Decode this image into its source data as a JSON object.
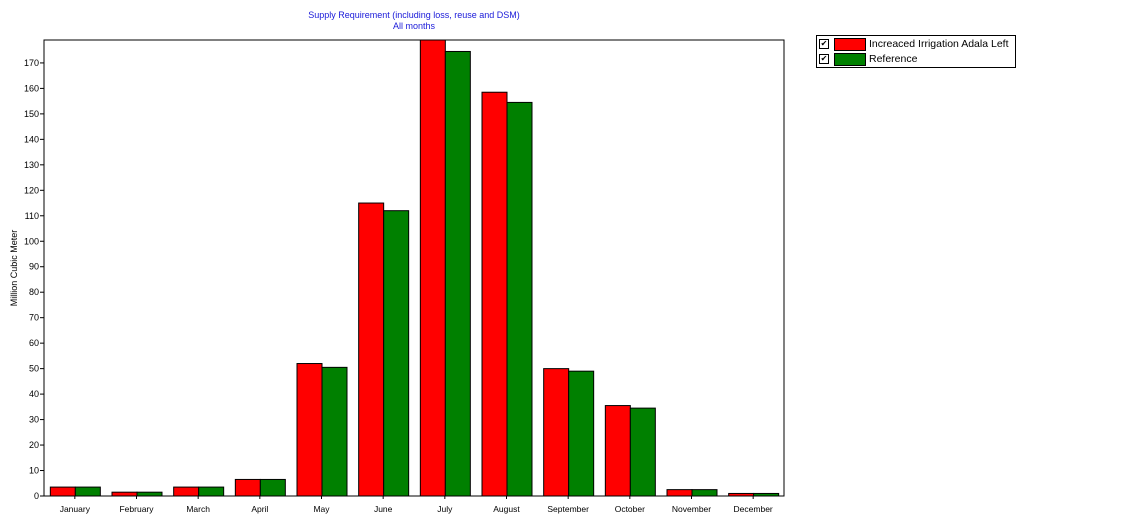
{
  "chart_data": {
    "type": "bar",
    "title": "Supply Requirement (including loss, reuse and DSM)",
    "subtitle": "All months",
    "xlabel": "",
    "ylabel": "Million Cubic Meter",
    "ylim": [
      0,
      179
    ],
    "yticks": [
      0,
      10,
      20,
      30,
      40,
      50,
      60,
      70,
      80,
      90,
      100,
      110,
      120,
      130,
      140,
      150,
      160,
      170
    ],
    "grid": false,
    "legend_position": "top-right, outside plot",
    "categories": [
      "January",
      "February",
      "March",
      "April",
      "May",
      "June",
      "July",
      "August",
      "September",
      "October",
      "November",
      "December"
    ],
    "series": [
      {
        "name": "Increaced Irrigation Adala Left",
        "color": "#ff0000",
        "values": [
          3.5,
          1.5,
          3.5,
          6.5,
          52,
          115,
          179,
          158.5,
          50,
          35.5,
          2.5,
          1
        ]
      },
      {
        "name": "Reference",
        "color": "#008000",
        "values": [
          3.5,
          1.5,
          3.5,
          6.5,
          50.5,
          112,
          174.5,
          154.5,
          49,
          34.5,
          2.5,
          1
        ]
      }
    ]
  },
  "legend": {
    "check_mark": "✔"
  }
}
